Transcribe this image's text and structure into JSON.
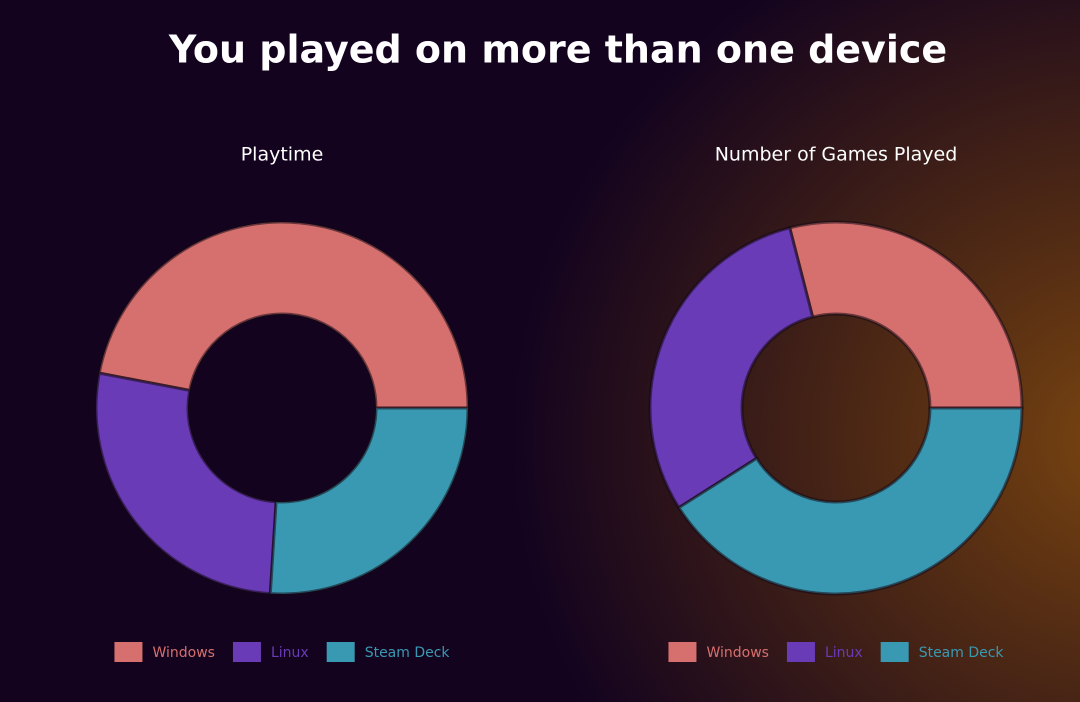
{
  "title": "You played on more than one device",
  "chart_data": [
    {
      "type": "doughnut",
      "title": "Playtime",
      "categories": [
        "Windows",
        "Linux",
        "Steam Deck"
      ],
      "values": [
        47,
        27,
        26
      ],
      "colors": [
        "#d6706e",
        "#6a3bb6",
        "#3a99b2"
      ]
    },
    {
      "type": "doughnut",
      "title": "Number of Games Played",
      "categories": [
        "Windows",
        "Linux",
        "Steam Deck"
      ],
      "values": [
        29,
        30,
        41
      ],
      "colors": [
        "#d6706e",
        "#6a3bb6",
        "#3a99b2"
      ]
    }
  ]
}
